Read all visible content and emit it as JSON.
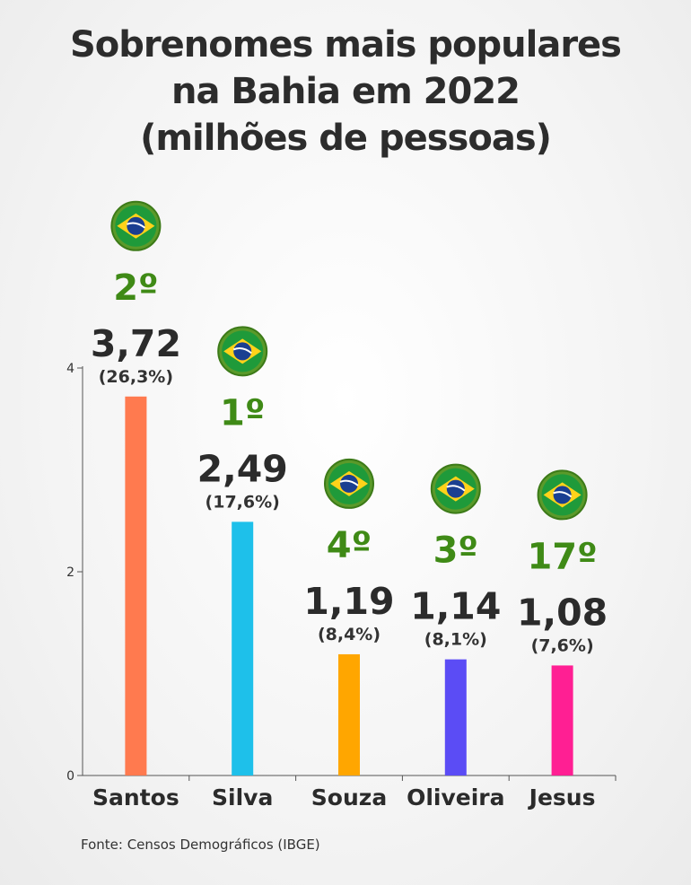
{
  "chart_data": {
    "type": "bar",
    "title_lines": [
      "Sobrenomes mais populares",
      "na Bahia em 2022",
      "(milhões de pessoas)"
    ],
    "categories": [
      "Santos",
      "Silva",
      "Souza",
      "Oliveira",
      "Jesus"
    ],
    "values": [
      3.72,
      2.49,
      1.19,
      1.14,
      1.08
    ],
    "value_labels": [
      "3,72",
      "2,49",
      "1,19",
      "1,14",
      "1,08"
    ],
    "percent_labels": [
      "(26,3%)",
      "(17,6%)",
      "(8,4%)",
      "(8,1%)",
      "(7,6%)"
    ],
    "brazil_rank_labels": [
      "2º",
      "1º",
      "4º",
      "3º",
      "17º"
    ],
    "colors": [
      "#ff7a4f",
      "#1ec0ea",
      "#ffa600",
      "#5b4cf5",
      "#ff1f93"
    ],
    "rank_color": "#3f8a16",
    "yticks": [
      0,
      2,
      4
    ],
    "ytick_labels": [
      "0",
      "2",
      "4"
    ],
    "ylim": [
      0,
      4
    ],
    "xlabel": "",
    "ylabel": "",
    "grid": false,
    "marker_icon": "brazil-flag-icon"
  },
  "source": "Fonte: Censos Demográficos (IBGE)"
}
